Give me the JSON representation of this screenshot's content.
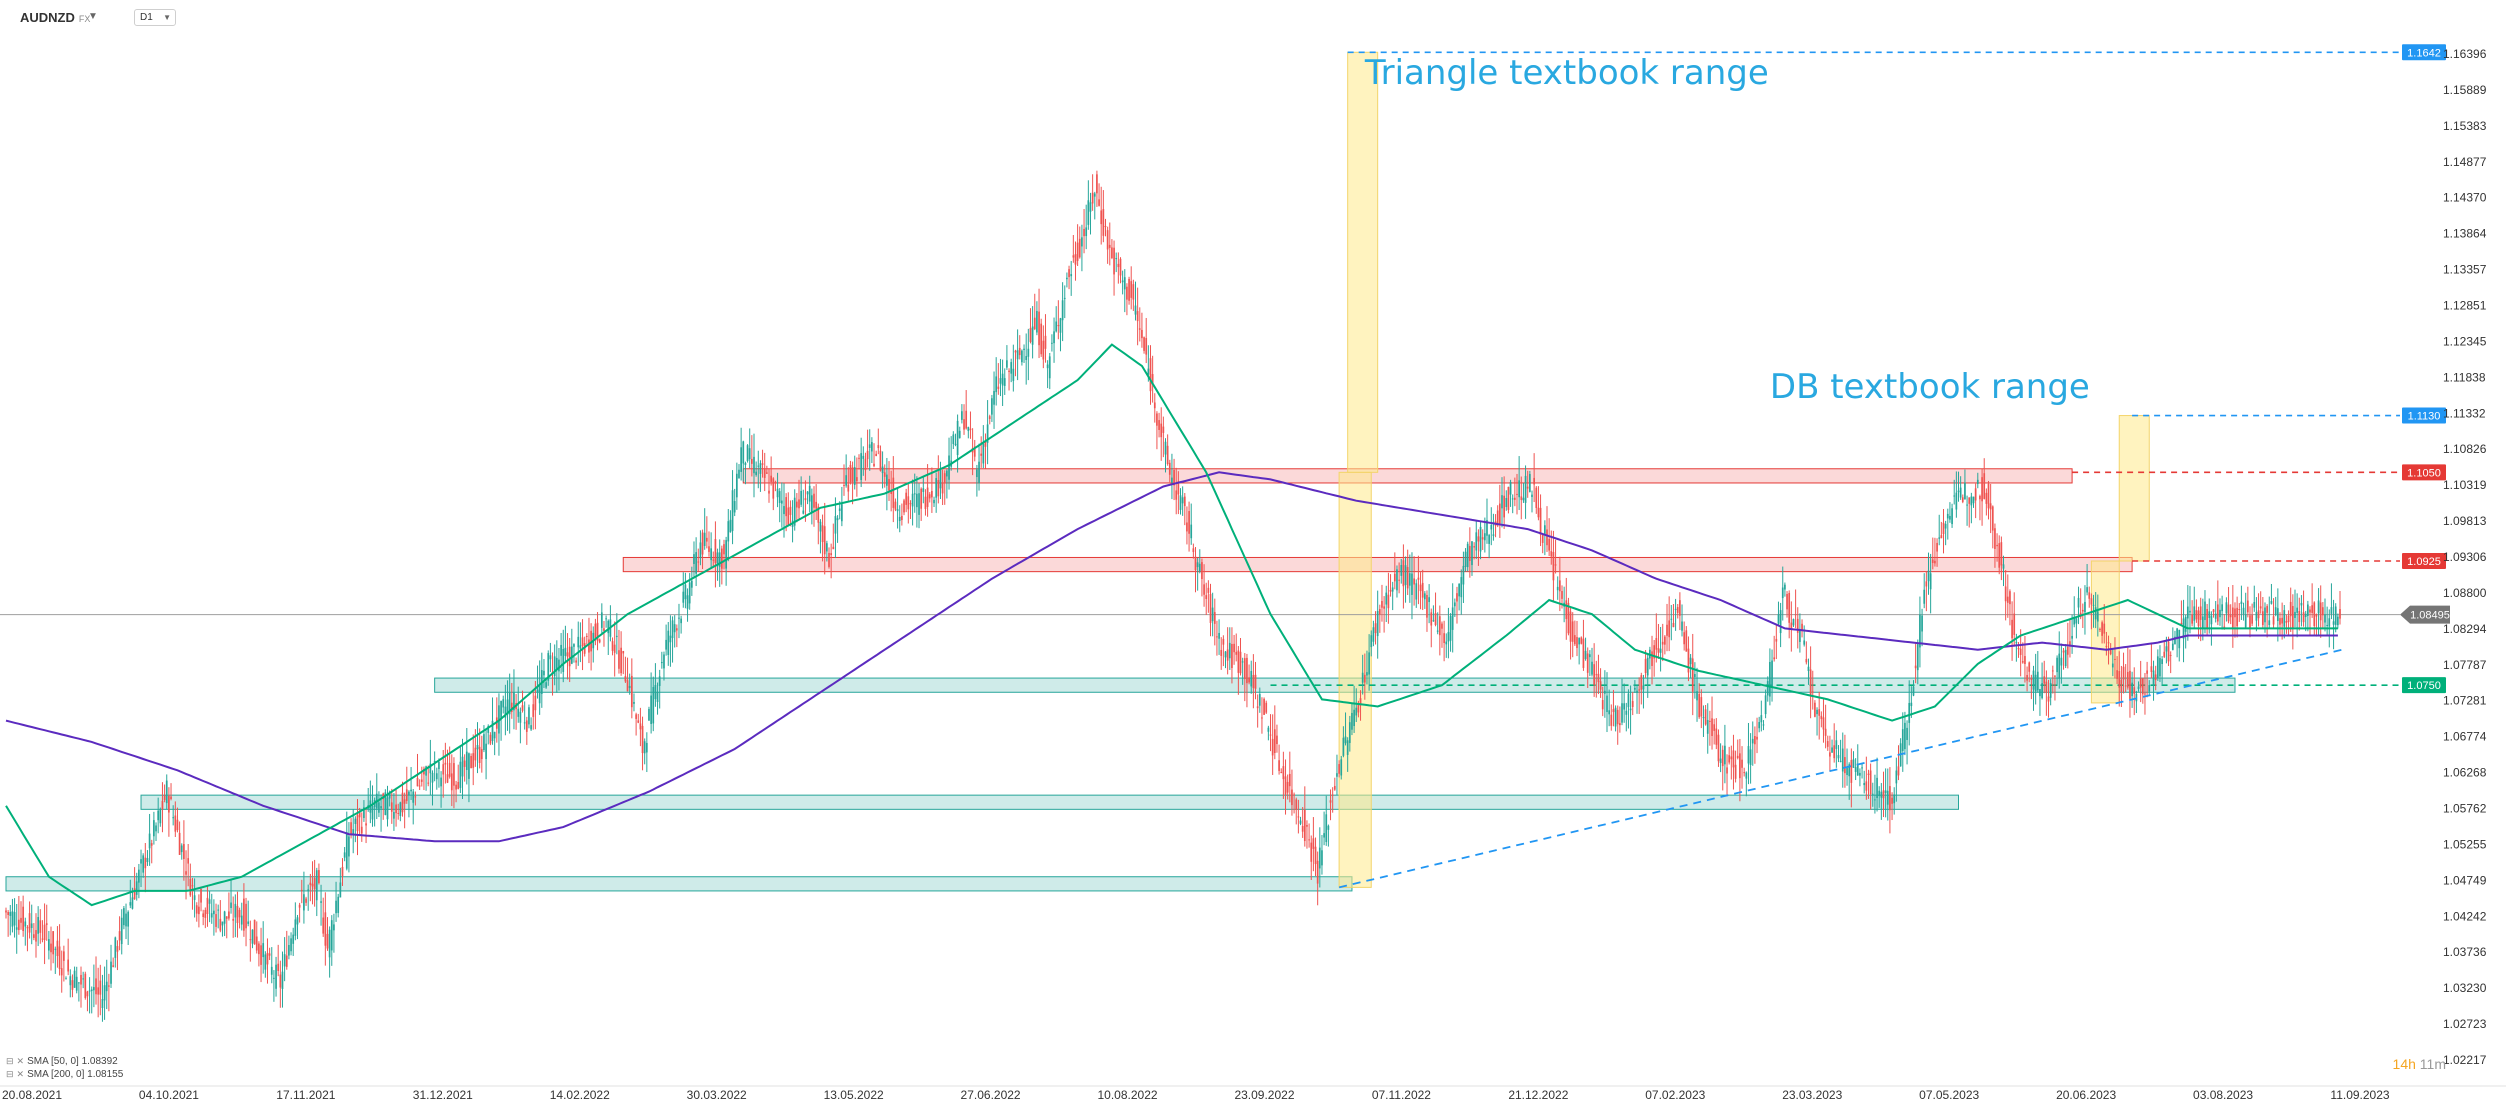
{
  "header": {
    "symbol": "AUDNZD",
    "market": "FX",
    "timeframe": "D1",
    "symbol_menu_icon": "caret-down-icon",
    "timeframe_menu_icon": "caret-down-icon"
  },
  "chart_data": {
    "type": "candlestick",
    "y_axis_ticks": [
      1.16396,
      1.15889,
      1.15383,
      1.14877,
      1.1437,
      1.13864,
      1.13357,
      1.12851,
      1.12345,
      1.11838,
      1.11332,
      1.10826,
      1.10319,
      1.09813,
      1.09306,
      1.088,
      1.08294,
      1.07787,
      1.07281,
      1.06774,
      1.06268,
      1.05762,
      1.05255,
      1.04749,
      1.04242,
      1.03736,
      1.0323,
      1.02723,
      1.02217
    ],
    "x_axis_ticks": [
      "20.08.2021",
      "04.10.2021",
      "17.11.2021",
      "31.12.2021",
      "14.02.2022",
      "30.03.2022",
      "13.05.2022",
      "27.06.2022",
      "10.08.2022",
      "23.09.2022",
      "07.11.2022",
      "21.12.2022",
      "07.02.2023",
      "23.03.2023",
      "07.05.2023",
      "20.06.2023",
      "03.08.2023",
      "11.09.2023"
    ],
    "current_price": "1.08495",
    "price_path": [
      [
        0,
        1.043
      ],
      [
        18,
        1.04
      ],
      [
        30,
        1.034
      ],
      [
        45,
        1.031
      ],
      [
        55,
        1.042
      ],
      [
        70,
        1.055
      ],
      [
        75,
        1.06
      ],
      [
        88,
        1.045
      ],
      [
        100,
        1.042
      ],
      [
        110,
        1.043
      ],
      [
        123,
        1.035
      ],
      [
        128,
        1.033
      ],
      [
        136,
        1.044
      ],
      [
        145,
        1.047
      ],
      [
        150,
        1.038
      ],
      [
        160,
        1.054
      ],
      [
        172,
        1.058
      ],
      [
        185,
        1.058
      ],
      [
        198,
        1.063
      ],
      [
        210,
        1.062
      ],
      [
        222,
        1.066
      ],
      [
        235,
        1.073
      ],
      [
        244,
        1.07
      ],
      [
        253,
        1.078
      ],
      [
        268,
        1.08
      ],
      [
        280,
        1.084
      ],
      [
        290,
        1.076
      ],
      [
        297,
        1.066
      ],
      [
        307,
        1.08
      ],
      [
        318,
        1.088
      ],
      [
        324,
        1.095
      ],
      [
        335,
        1.093
      ],
      [
        343,
        1.108
      ],
      [
        357,
        1.103
      ],
      [
        366,
        1.099
      ],
      [
        374,
        1.102
      ],
      [
        384,
        1.093
      ],
      [
        392,
        1.104
      ],
      [
        406,
        1.108
      ],
      [
        416,
        1.1
      ],
      [
        426,
        1.101
      ],
      [
        437,
        1.104
      ],
      [
        447,
        1.113
      ],
      [
        453,
        1.105
      ],
      [
        462,
        1.117
      ],
      [
        472,
        1.121
      ],
      [
        481,
        1.126
      ],
      [
        486,
        1.12
      ],
      [
        495,
        1.132
      ],
      [
        503,
        1.139
      ],
      [
        508,
        1.145
      ],
      [
        516,
        1.135
      ],
      [
        526,
        1.129
      ],
      [
        534,
        1.118
      ],
      [
        542,
        1.106
      ],
      [
        552,
        1.097
      ],
      [
        559,
        1.088
      ],
      [
        568,
        1.08
      ],
      [
        577,
        1.078
      ],
      [
        587,
        1.071
      ],
      [
        596,
        1.062
      ],
      [
        605,
        1.056
      ],
      [
        612,
        1.049
      ],
      [
        621,
        1.063
      ],
      [
        632,
        1.074
      ],
      [
        640,
        1.085
      ],
      [
        651,
        1.091
      ],
      [
        664,
        1.086
      ],
      [
        672,
        1.081
      ],
      [
        681,
        1.093
      ],
      [
        692,
        1.097
      ],
      [
        702,
        1.102
      ],
      [
        712,
        1.103
      ],
      [
        721,
        1.092
      ],
      [
        730,
        1.083
      ],
      [
        740,
        1.077
      ],
      [
        750,
        1.07
      ],
      [
        760,
        1.074
      ],
      [
        770,
        1.081
      ],
      [
        780,
        1.085
      ],
      [
        790,
        1.072
      ],
      [
        800,
        1.065
      ],
      [
        810,
        1.063
      ],
      [
        820,
        1.071
      ],
      [
        829,
        1.088
      ],
      [
        838,
        1.081
      ],
      [
        845,
        1.07
      ],
      [
        852,
        1.066
      ],
      [
        861,
        1.063
      ],
      [
        873,
        1.06
      ],
      [
        880,
        1.059
      ],
      [
        887,
        1.07
      ],
      [
        895,
        1.088
      ],
      [
        904,
        1.098
      ],
      [
        913,
        1.102
      ],
      [
        923,
        1.103
      ],
      [
        931,
        1.092
      ],
      [
        938,
        1.08
      ],
      [
        945,
        1.076
      ],
      [
        952,
        1.074
      ],
      [
        961,
        1.08
      ],
      [
        970,
        1.088
      ],
      [
        978,
        1.083
      ],
      [
        986,
        1.076
      ],
      [
        995,
        1.074
      ],
      [
        1003,
        1.077
      ],
      [
        1010,
        1.08
      ],
      [
        1018,
        1.085
      ]
    ],
    "sma50_path": [
      [
        0,
        1.058
      ],
      [
        20,
        1.048
      ],
      [
        40,
        1.044
      ],
      [
        60,
        1.046
      ],
      [
        85,
        1.046
      ],
      [
        110,
        1.048
      ],
      [
        140,
        1.053
      ],
      [
        170,
        1.058
      ],
      [
        200,
        1.064
      ],
      [
        230,
        1.07
      ],
      [
        260,
        1.078
      ],
      [
        290,
        1.085
      ],
      [
        320,
        1.09
      ],
      [
        350,
        1.095
      ],
      [
        380,
        1.1
      ],
      [
        410,
        1.102
      ],
      [
        440,
        1.106
      ],
      [
        470,
        1.112
      ],
      [
        500,
        1.118
      ],
      [
        516,
        1.123
      ],
      [
        530,
        1.12
      ],
      [
        560,
        1.105
      ],
      [
        590,
        1.085
      ],
      [
        614,
        1.073
      ],
      [
        640,
        1.072
      ],
      [
        670,
        1.075
      ],
      [
        700,
        1.082
      ],
      [
        720,
        1.087
      ],
      [
        740,
        1.085
      ],
      [
        760,
        1.08
      ],
      [
        790,
        1.077
      ],
      [
        820,
        1.075
      ],
      [
        850,
        1.073
      ],
      [
        880,
        1.07
      ],
      [
        900,
        1.072
      ],
      [
        920,
        1.078
      ],
      [
        940,
        1.082
      ],
      [
        960,
        1.084
      ],
      [
        990,
        1.087
      ],
      [
        1004,
        1.085
      ],
      [
        1018,
        1.083
      ]
    ],
    "sma200_path": [
      [
        0,
        1.07
      ],
      [
        40,
        1.067
      ],
      [
        80,
        1.063
      ],
      [
        120,
        1.058
      ],
      [
        160,
        1.054
      ],
      [
        200,
        1.053
      ],
      [
        230,
        1.053
      ],
      [
        260,
        1.055
      ],
      [
        300,
        1.06
      ],
      [
        340,
        1.066
      ],
      [
        380,
        1.074
      ],
      [
        420,
        1.082
      ],
      [
        460,
        1.09
      ],
      [
        500,
        1.097
      ],
      [
        540,
        1.103
      ],
      [
        566,
        1.105
      ],
      [
        590,
        1.104
      ],
      [
        630,
        1.101
      ],
      [
        670,
        1.099
      ],
      [
        710,
        1.097
      ],
      [
        740,
        1.094
      ],
      [
        770,
        1.09
      ],
      [
        800,
        1.087
      ],
      [
        830,
        1.083
      ],
      [
        860,
        1.082
      ],
      [
        890,
        1.081
      ],
      [
        920,
        1.08
      ],
      [
        950,
        1.081
      ],
      [
        980,
        1.08
      ],
      [
        1004,
        1.081
      ],
      [
        1018,
        1.082
      ]
    ],
    "resistance_zones": [
      {
        "x_start": 344,
        "x_end": 964,
        "y_low": 1.1035,
        "y_high": 1.1055
      },
      {
        "x_start": 288,
        "x_end": 992,
        "y_low": 1.091,
        "y_high": 1.093
      }
    ],
    "support_zones": [
      {
        "x_start": 200,
        "x_end": 1040,
        "y_low": 1.074,
        "y_high": 1.076
      },
      {
        "x_start": 63,
        "x_end": 911,
        "y_low": 1.0575,
        "y_high": 1.0595
      },
      {
        "x_start": 0,
        "x_end": 628,
        "y_low": 1.046,
        "y_high": 1.048
      }
    ],
    "horizontal_levels": [
      {
        "label": "1.1642",
        "price": 1.1642,
        "color": "#2196f3",
        "x_start": 626
      },
      {
        "label": "1.1130",
        "price": 1.113,
        "color": "#2196f3",
        "x_start": 992
      },
      {
        "label": "1.1050",
        "price": 1.105,
        "color": "#e53935",
        "x_start": 964
      },
      {
        "label": "1.0925",
        "price": 1.0925,
        "color": "#e53935",
        "x_start": 992
      },
      {
        "label": "1.0750",
        "price": 1.075,
        "color": "#00b07a",
        "x_start": 590
      }
    ],
    "range_boxes": [
      {
        "x_start": 622,
        "x_end": 637,
        "y_low": 1.0465,
        "y_high": 1.105
      },
      {
        "x_start": 626,
        "x_end": 640,
        "y_low": 1.105,
        "y_high": 1.1642
      },
      {
        "x_start": 973,
        "x_end": 986,
        "y_low": 1.0725,
        "y_high": 1.0925
      },
      {
        "x_start": 986,
        "x_end": 1000,
        "y_low": 1.0925,
        "y_high": 1.113
      }
    ],
    "trendline": {
      "points": [
        [
          622,
          1.0465
        ],
        [
          1090,
          1.08
        ]
      ]
    },
    "annotations": [
      {
        "text": "Triangle textbook range",
        "x": 634,
        "price": 1.1597
      },
      {
        "text": "DB textbook range",
        "x": 823,
        "price": 1.1155
      }
    ],
    "legend_entries": [
      "SMA [50, 0] 1.08392",
      "SMA [200, 0] 1.08155"
    ],
    "colors": {
      "up": "#26a69a",
      "down": "#ef5350",
      "sma50": "#00b07a",
      "sma200": "#5b2bbf",
      "annotation": "#29a8e0",
      "trendline": "#2196f3",
      "range_box": "#ffe98a"
    }
  },
  "timer": {
    "hours": "14h",
    "minutes": "11m"
  }
}
